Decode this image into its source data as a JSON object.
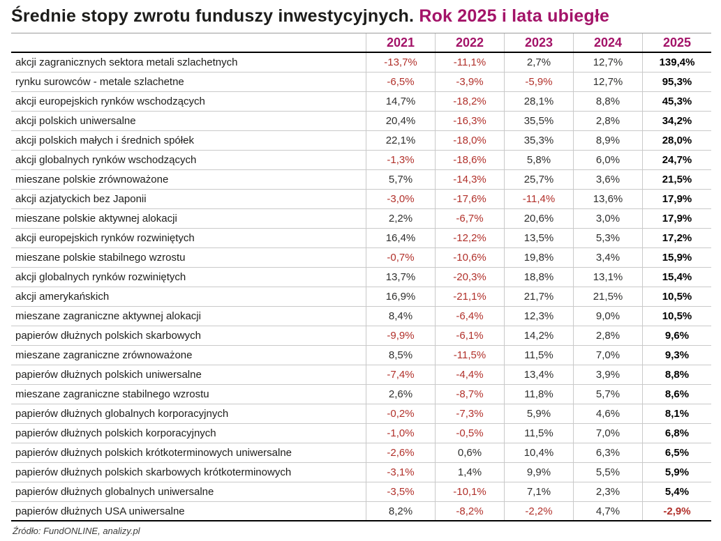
{
  "title": {
    "main": "Średnie stopy zwrotu funduszy inwestycyjnych.",
    "highlight": " Rok 2025 i lata ubiegłe"
  },
  "colors": {
    "accent": "#a31368",
    "negative": "#b1302a",
    "text": "#1d1d1b",
    "grid": "#c9c9c9"
  },
  "table": {
    "year_headers": [
      "2021",
      "2022",
      "2023",
      "2024",
      "2025"
    ],
    "rows": [
      {
        "label": "akcji zagranicznych sektora metali szlachetnych",
        "values": [
          "-13,7%",
          "-11,1%",
          "2,7%",
          "12,7%",
          "139,4%"
        ]
      },
      {
        "label": "rynku surowców - metale szlachetne",
        "values": [
          "-6,5%",
          "-3,9%",
          "-5,9%",
          "12,7%",
          "95,3%"
        ]
      },
      {
        "label": "akcji europejskich rynków wschodzących",
        "values": [
          "14,7%",
          "-18,2%",
          "28,1%",
          "8,8%",
          "45,3%"
        ]
      },
      {
        "label": "akcji polskich uniwersalne",
        "values": [
          "20,4%",
          "-16,3%",
          "35,5%",
          "2,8%",
          "34,2%"
        ]
      },
      {
        "label": "akcji polskich małych i średnich spółek",
        "values": [
          "22,1%",
          "-18,0%",
          "35,3%",
          "8,9%",
          "28,0%"
        ]
      },
      {
        "label": "akcji globalnych rynków wschodzących",
        "values": [
          "-1,3%",
          "-18,6%",
          "5,8%",
          "6,0%",
          "24,7%"
        ]
      },
      {
        "label": "mieszane polskie zrównoważone",
        "values": [
          "5,7%",
          "-14,3%",
          "25,7%",
          "3,6%",
          "21,5%"
        ]
      },
      {
        "label": "akcji azjatyckich bez Japonii",
        "values": [
          "-3,0%",
          "-17,6%",
          "-11,4%",
          "13,6%",
          "17,9%"
        ]
      },
      {
        "label": "mieszane polskie aktywnej alokacji",
        "values": [
          "2,2%",
          "-6,7%",
          "20,6%",
          "3,0%",
          "17,9%"
        ]
      },
      {
        "label": "akcji europejskich rynków rozwiniętych",
        "values": [
          "16,4%",
          "-12,2%",
          "13,5%",
          "5,3%",
          "17,2%"
        ]
      },
      {
        "label": "mieszane polskie stabilnego wzrostu",
        "values": [
          "-0,7%",
          "-10,6%",
          "19,8%",
          "3,4%",
          "15,9%"
        ]
      },
      {
        "label": "akcji globalnych rynków rozwiniętych",
        "values": [
          "13,7%",
          "-20,3%",
          "18,8%",
          "13,1%",
          "15,4%"
        ]
      },
      {
        "label": "akcji amerykańskich",
        "values": [
          "16,9%",
          "-21,1%",
          "21,7%",
          "21,5%",
          "10,5%"
        ]
      },
      {
        "label": "mieszane zagraniczne aktywnej alokacji",
        "values": [
          "8,4%",
          "-6,4%",
          "12,3%",
          "9,0%",
          "10,5%"
        ]
      },
      {
        "label": "papierów dłużnych polskich skarbowych",
        "values": [
          "-9,9%",
          "-6,1%",
          "14,2%",
          "2,8%",
          "9,6%"
        ]
      },
      {
        "label": "mieszane zagraniczne zrównoważone",
        "values": [
          "8,5%",
          "-11,5%",
          "11,5%",
          "7,0%",
          "9,3%"
        ]
      },
      {
        "label": "papierów dłużnych polskich uniwersalne",
        "values": [
          "-7,4%",
          "-4,4%",
          "13,4%",
          "3,9%",
          "8,8%"
        ]
      },
      {
        "label": "mieszane zagraniczne stabilnego wzrostu",
        "values": [
          "2,6%",
          "-8,7%",
          "11,8%",
          "5,7%",
          "8,6%"
        ]
      },
      {
        "label": "papierów dłużnych globalnych korporacyjnych",
        "values": [
          "-0,2%",
          "-7,3%",
          "5,9%",
          "4,6%",
          "8,1%"
        ]
      },
      {
        "label": "papierów dłużnych polskich korporacyjnych",
        "values": [
          "-1,0%",
          "-0,5%",
          "11,5%",
          "7,0%",
          "6,8%"
        ]
      },
      {
        "label": "papierów dłużnych polskich krótkoterminowych uniwersalne",
        "values": [
          "-2,6%",
          "0,6%",
          "10,4%",
          "6,3%",
          "6,5%"
        ]
      },
      {
        "label": "papierów dłużnych polskich skarbowych krótkoterminowych",
        "values": [
          "-3,1%",
          "1,4%",
          "9,9%",
          "5,5%",
          "5,9%"
        ]
      },
      {
        "label": "papierów dłużnych globalnych uniwersalne",
        "values": [
          "-3,5%",
          "-10,1%",
          "7,1%",
          "2,3%",
          "5,4%"
        ]
      },
      {
        "label": "papierów dłużnych USA uniwersalne",
        "values": [
          "8,2%",
          "-8,2%",
          "-2,2%",
          "4,7%",
          "-2,9%"
        ]
      }
    ]
  },
  "footer": {
    "source": "Źródło: FundONLINE, analizy.pl"
  },
  "chart_data": {
    "type": "table",
    "title": "Średnie stopy zwrotu funduszy inwestycyjnych. Rok 2025 i lata ubiegłe",
    "unit": "%",
    "categories": [
      "akcji zagranicznych sektora metali szlachetnych",
      "rynku surowców - metale szlachetne",
      "akcji europejskich rynków wschodzących",
      "akcji polskich uniwersalne",
      "akcji polskich małych i średnich spółek",
      "akcji globalnych rynków wschodzących",
      "mieszane polskie zrównoważone",
      "akcji azjatyckich bez Japonii",
      "mieszane polskie aktywnej alokacji",
      "akcji europejskich rynków rozwiniętych",
      "mieszane polskie stabilnego wzrostu",
      "akcji globalnych rynków rozwiniętych",
      "akcji amerykańskich",
      "mieszane zagraniczne aktywnej alokacji",
      "papierów dłużnych polskich skarbowych",
      "mieszane zagraniczne zrównoważone",
      "papierów dłużnych polskich uniwersalne",
      "mieszane zagraniczne stabilnego wzrostu",
      "papierów dłużnych globalnych korporacyjnych",
      "papierów dłużnych polskich korporacyjnych",
      "papierów dłużnych polskich krótkoterminowych uniwersalne",
      "papierów dłużnych polskich skarbowych krótkoterminowych",
      "papierów dłużnych globalnych uniwersalne",
      "papierów dłużnych USA uniwersalne"
    ],
    "series": [
      {
        "name": "2021",
        "values": [
          -13.7,
          -6.5,
          14.7,
          20.4,
          22.1,
          -1.3,
          5.7,
          -3.0,
          2.2,
          16.4,
          -0.7,
          13.7,
          16.9,
          8.4,
          -9.9,
          8.5,
          -7.4,
          2.6,
          -0.2,
          -1.0,
          -2.6,
          -3.1,
          -3.5,
          8.2
        ]
      },
      {
        "name": "2022",
        "values": [
          -11.1,
          -3.9,
          -18.2,
          -16.3,
          -18.0,
          -18.6,
          -14.3,
          -17.6,
          -6.7,
          -12.2,
          -10.6,
          -20.3,
          -21.1,
          -6.4,
          -6.1,
          -11.5,
          -4.4,
          -8.7,
          -7.3,
          -0.5,
          0.6,
          1.4,
          -10.1,
          -8.2
        ]
      },
      {
        "name": "2023",
        "values": [
          2.7,
          -5.9,
          28.1,
          35.5,
          35.3,
          5.8,
          25.7,
          -11.4,
          20.6,
          13.5,
          19.8,
          18.8,
          21.7,
          12.3,
          14.2,
          11.5,
          13.4,
          11.8,
          5.9,
          11.5,
          10.4,
          9.9,
          7.1,
          -2.2
        ]
      },
      {
        "name": "2024",
        "values": [
          12.7,
          12.7,
          8.8,
          2.8,
          8.9,
          6.0,
          3.6,
          13.6,
          3.0,
          5.3,
          3.4,
          13.1,
          21.5,
          9.0,
          2.8,
          7.0,
          3.9,
          5.7,
          4.6,
          7.0,
          6.3,
          5.5,
          2.3,
          4.7
        ]
      },
      {
        "name": "2025",
        "values": [
          139.4,
          95.3,
          45.3,
          34.2,
          28.0,
          24.7,
          21.5,
          17.9,
          17.9,
          17.2,
          15.9,
          15.4,
          10.5,
          10.5,
          9.6,
          9.3,
          8.8,
          8.6,
          8.1,
          6.8,
          6.5,
          5.9,
          5.4,
          -2.9
        ]
      }
    ]
  }
}
